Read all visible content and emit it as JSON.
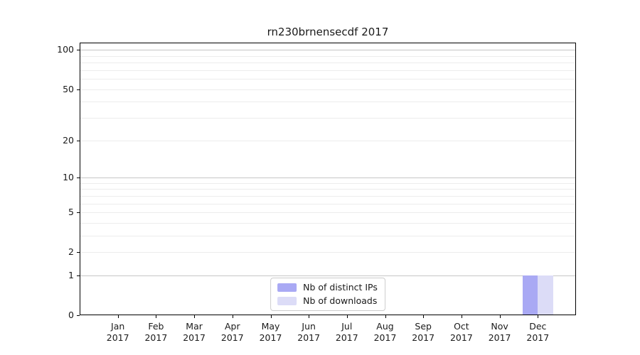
{
  "title": "rn230brnensecdf 2017",
  "colors": {
    "bar_distinct_ips": "#a9a9f4",
    "bar_downloads": "#dcdcf7",
    "grid_major": "#c6c6c6",
    "grid_minor": "#ececec",
    "spine": "#000000",
    "text": "#1a1a1a",
    "legend_border": "#cccccc",
    "background": "#ffffff"
  },
  "legend": {
    "items": [
      {
        "label": "Nb of distinct IPs",
        "color": "#a9a9f4"
      },
      {
        "label": "Nb of downloads",
        "color": "#dcdcf7"
      }
    ],
    "position": "lower center"
  },
  "chart_data": {
    "type": "bar",
    "title": "rn230brnensecdf 2017",
    "categories": [
      {
        "month": "Jan",
        "year": "2017"
      },
      {
        "month": "Feb",
        "year": "2017"
      },
      {
        "month": "Mar",
        "year": "2017"
      },
      {
        "month": "Apr",
        "year": "2017"
      },
      {
        "month": "May",
        "year": "2017"
      },
      {
        "month": "Jun",
        "year": "2017"
      },
      {
        "month": "Jul",
        "year": "2017"
      },
      {
        "month": "Aug",
        "year": "2017"
      },
      {
        "month": "Sep",
        "year": "2017"
      },
      {
        "month": "Oct",
        "year": "2017"
      },
      {
        "month": "Nov",
        "year": "2017"
      },
      {
        "month": "Dec",
        "year": "2017"
      }
    ],
    "series": [
      {
        "name": "Nb of distinct IPs",
        "color": "#a9a9f4",
        "values": [
          0,
          0,
          0,
          0,
          0,
          0,
          0,
          0,
          0,
          0,
          0,
          1
        ]
      },
      {
        "name": "Nb of downloads",
        "color": "#dcdcf7",
        "values": [
          0,
          0,
          0,
          0,
          0,
          0,
          0,
          0,
          0,
          0,
          0,
          1
        ]
      }
    ],
    "xlabel": "",
    "ylabel": "",
    "y_scale": "log1p",
    "ylim": [
      0,
      113.9
    ],
    "xlim": [
      0,
      13
    ],
    "y_ticks": [
      0,
      1,
      2,
      5,
      10,
      20,
      50,
      100
    ],
    "y_major_grid": [
      1,
      10,
      100
    ],
    "y_minor_grid": [
      2,
      3,
      4,
      5,
      6,
      7,
      8,
      9,
      20,
      30,
      40,
      50,
      60,
      70,
      80,
      90
    ],
    "grid": true,
    "legend_position": "lower center",
    "bar_width_fraction": 0.4
  }
}
